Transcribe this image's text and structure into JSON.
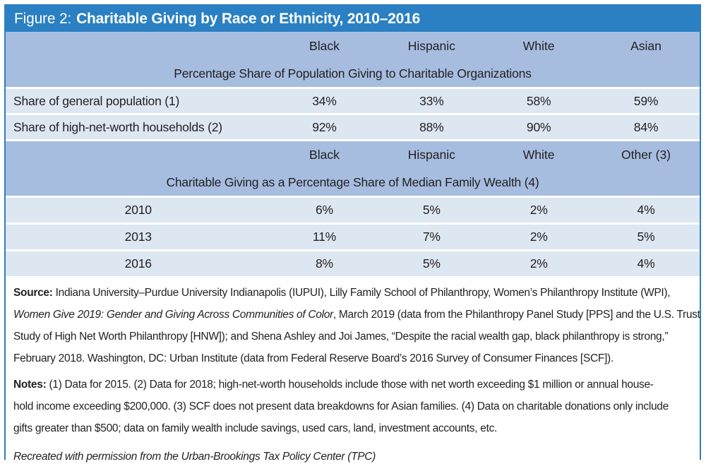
{
  "figure": {
    "label": "Figure 2:",
    "title": "Charitable Giving by Race or Ethnicity, 2010–2016"
  },
  "panel1": {
    "columns": [
      "Black",
      "Hispanic",
      "White",
      "Asian"
    ],
    "section_title": "Percentage Share of Population Giving to Charitable Organizations",
    "rows": [
      {
        "label": "Share of general population (1)",
        "values": [
          "34%",
          "33%",
          "58%",
          "59%"
        ]
      },
      {
        "label": "Share of high-net-worth households (2)",
        "values": [
          "92%",
          "88%",
          "90%",
          "84%"
        ]
      }
    ]
  },
  "panel2": {
    "columns": [
      "Black",
      "Hispanic",
      "White",
      "Other (3)"
    ],
    "section_title": "Charitable Giving as a Percentage Share of Median Family Wealth (4)",
    "rows": [
      {
        "label": "2010",
        "values": [
          "6%",
          "5%",
          "2%",
          "4%"
        ]
      },
      {
        "label": "2013",
        "values": [
          "11%",
          "7%",
          "2%",
          "5%"
        ]
      },
      {
        "label": "2016",
        "values": [
          "8%",
          "5%",
          "2%",
          "4%"
        ]
      }
    ]
  },
  "source": {
    "label": "Source:",
    "line1_rest": " Indiana University–Purdue University Indianapolis (IUPUI), Lilly Family School of Philanthropy, Women’s Philanthropy Institute (WPI),",
    "line2_italic": "Women Give 2019: Gender and Giving Across Communities of Color",
    "line2_rest": ", March 2019 (data from the Philanthropy Panel Study [PPS] and the U.S. Trust",
    "line3": "Study of High Net Worth Philanthropy [HNW]); and Shena Ashley and Joi James,  “Despite the racial wealth gap, black philanthropy is strong,”",
    "line4": "February 2018. Washington, DC: Urban Institute (data from Federal Reserve Board’s 2016 Survey of Consumer Finances [SCF])."
  },
  "notes": {
    "label": "Notes:",
    "line1_rest": " (1) Data for 2015. (2) Data for 2018; high-net-worth households include those with net worth exceeding $1 million or annual house-",
    "line2": "hold income exceeding $200,000. (3) SCF does not present data breakdowns for Asian families. (4) Data on charitable donations only include",
    "line3": "gifts greater than $500; data on family wealth include savings, used cars, land, investment accounts, etc."
  },
  "credit": "Recreated with permission from the Urban-Brookings Tax Policy Center (TPC)",
  "colors": {
    "title_bar_blue": "#2a80c2",
    "header_band_blue": "#a6bde0",
    "row_light_blue": "#dde7f2",
    "border_blue": "#2f7ec0",
    "text_dark": "#231f20"
  },
  "chart_data": [
    {
      "type": "table",
      "title": "Percentage Share of Population Giving to Charitable Organizations",
      "columns": [
        "Black",
        "Hispanic",
        "White",
        "Asian"
      ],
      "unit": "%",
      "rows": [
        {
          "label": "Share of general population (1)",
          "values": [
            34,
            33,
            58,
            59
          ]
        },
        {
          "label": "Share of high-net-worth households (2)",
          "values": [
            92,
            88,
            90,
            84
          ]
        }
      ]
    },
    {
      "type": "table",
      "title": "Charitable Giving as a Percentage Share of Median Family Wealth (4)",
      "columns": [
        "Black",
        "Hispanic",
        "White",
        "Other (3)"
      ],
      "unit": "%",
      "rows": [
        {
          "label": "2010",
          "values": [
            6,
            5,
            2,
            4
          ]
        },
        {
          "label": "2013",
          "values": [
            11,
            7,
            2,
            5
          ]
        },
        {
          "label": "2016",
          "values": [
            8,
            5,
            2,
            4
          ]
        }
      ]
    }
  ]
}
